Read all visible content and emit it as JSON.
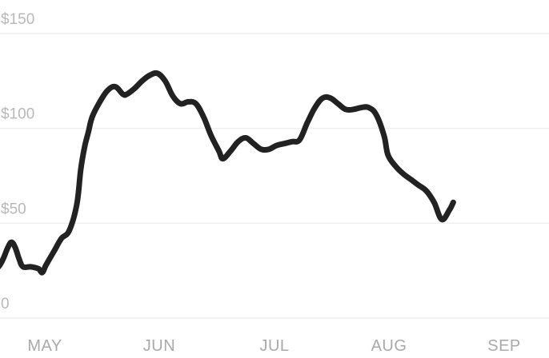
{
  "chart_data": {
    "type": "line",
    "title": "",
    "xlabel": "",
    "ylabel": "",
    "y_tick_labels": [
      "0",
      "$50",
      "$100",
      "$150"
    ],
    "y_ticks": [
      0,
      50,
      100,
      150
    ],
    "x_tick_labels": [
      "MAY",
      "JUN",
      "JUL",
      "AUG",
      "SEP"
    ],
    "ylim": [
      0,
      150
    ],
    "grid": true,
    "series": [
      {
        "color": "#222222",
        "points": [
          [
            "Apr 25",
            39
          ],
          [
            "Apr 26",
            34
          ],
          [
            "Apr 27",
            29
          ],
          [
            "Apr 28",
            26
          ],
          [
            "Apr 29",
            26
          ],
          [
            "Apr 30",
            28
          ],
          [
            "May 1",
            32
          ],
          [
            "May 2",
            37
          ],
          [
            "May 3",
            40
          ],
          [
            "May 4",
            37
          ],
          [
            "May 5",
            31
          ],
          [
            "May 6",
            27
          ],
          [
            "May 8",
            27
          ],
          [
            "May 10",
            26
          ],
          [
            "May 11",
            24
          ],
          [
            "May 12",
            28
          ],
          [
            "May 14",
            35
          ],
          [
            "May 16",
            42
          ],
          [
            "May 18",
            46
          ],
          [
            "May 20",
            60
          ],
          [
            "May 21",
            78
          ],
          [
            "May 22",
            90
          ],
          [
            "May 23",
            98
          ],
          [
            "May 24",
            106
          ],
          [
            "May 26",
            114
          ],
          [
            "May 28",
            120
          ],
          [
            "May 30",
            122
          ],
          [
            "Jun 1",
            118
          ],
          [
            "Jun 2",
            118
          ],
          [
            "Jun 4",
            121
          ],
          [
            "Jun 6",
            125
          ],
          [
            "Jun 8",
            128
          ],
          [
            "Jun 10",
            129
          ],
          [
            "Jun 12",
            125
          ],
          [
            "Jun 14",
            117
          ],
          [
            "Jun 16",
            113
          ],
          [
            "Jun 18",
            114
          ],
          [
            "Jun 20",
            113
          ],
          [
            "Jun 22",
            106
          ],
          [
            "Jun 24",
            96
          ],
          [
            "Jun 26",
            88
          ],
          [
            "Jun 27",
            84
          ],
          [
            "Jun 29",
            88
          ],
          [
            "Jul 1",
            93
          ],
          [
            "Jul 3",
            95
          ],
          [
            "Jul 5",
            92
          ],
          [
            "Jul 7",
            89
          ],
          [
            "Jul 9",
            89
          ],
          [
            "Jul 11",
            91
          ],
          [
            "Jul 13",
            92
          ],
          [
            "Jul 15",
            93
          ],
          [
            "Jul 17",
            94
          ],
          [
            "Jul 19",
            103
          ],
          [
            "Jul 21",
            111
          ],
          [
            "Jul 23",
            116
          ],
          [
            "Jul 25",
            116
          ],
          [
            "Jul 27",
            113
          ],
          [
            "Jul 29",
            110
          ],
          [
            "Jul 31",
            110
          ],
          [
            "Aug 2",
            111
          ],
          [
            "Aug 4",
            111
          ],
          [
            "Aug 6",
            107
          ],
          [
            "Aug 8",
            96
          ],
          [
            "Aug 9",
            86
          ],
          [
            "Aug 11",
            80
          ],
          [
            "Aug 13",
            76
          ],
          [
            "Aug 15",
            73
          ],
          [
            "Aug 17",
            70
          ],
          [
            "Aug 19",
            67
          ],
          [
            "Aug 21",
            61
          ],
          [
            "Aug 23",
            52
          ],
          [
            "Aug 25",
            57
          ],
          [
            "Aug 26",
            61
          ]
        ]
      }
    ]
  }
}
